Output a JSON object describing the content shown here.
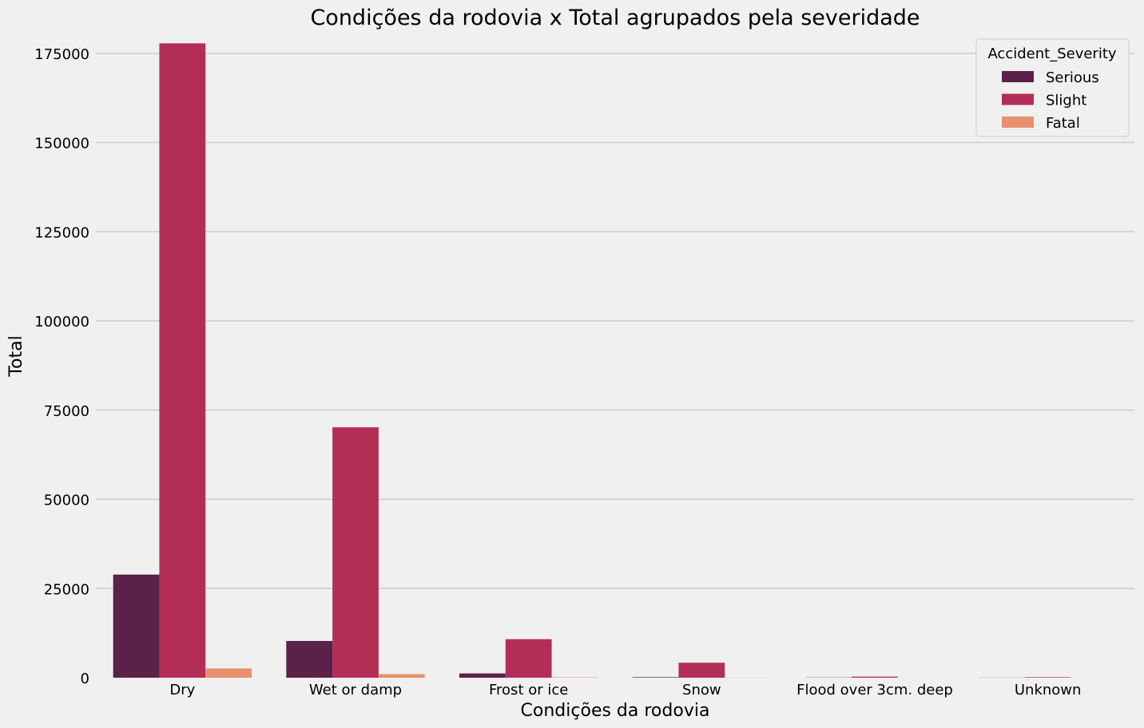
{
  "chart_data": {
    "type": "bar",
    "title": "Condições da rodovia x Total agrupados pela severidade",
    "xlabel": "Condições da rodovia",
    "ylabel": "Total",
    "categories": [
      "Dry",
      "Wet or damp",
      "Frost or ice",
      "Snow",
      "Flood over 3cm. deep",
      "Unknown"
    ],
    "series": [
      {
        "name": "Serious",
        "color": "#5a2149",
        "values": [
          28900,
          10300,
          1200,
          150,
          60,
          30
        ]
      },
      {
        "name": "Slight",
        "color": "#b32e56",
        "values": [
          177800,
          70200,
          10800,
          4200,
          300,
          150
        ]
      },
      {
        "name": "Fatal",
        "color": "#e8906f",
        "values": [
          2600,
          1000,
          110,
          30,
          10,
          5
        ]
      }
    ],
    "ylim": [
      0,
      181000
    ],
    "yticks": [
      0,
      25000,
      50000,
      75000,
      100000,
      125000,
      150000,
      175000
    ],
    "grid": true,
    "legend": {
      "title": "Accident_Severity",
      "position": "top-right"
    }
  }
}
